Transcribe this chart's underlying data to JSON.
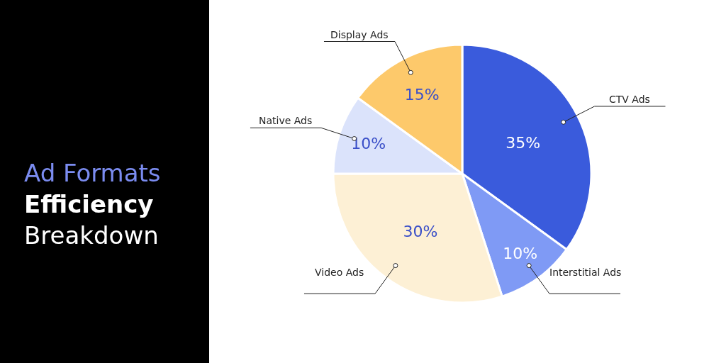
{
  "chart_data": {
    "type": "pie",
    "title": "Ad Formats\nEfficiency\nBreakdown",
    "categories": [
      "CTV Ads",
      "Interstitial Ads",
      "Video Ads",
      "Native Ads",
      "Display Ads"
    ],
    "values": [
      35,
      10,
      30,
      10,
      15
    ],
    "value_labels": [
      "35%",
      "10%",
      "30%",
      "10%",
      "15%"
    ],
    "colors": [
      "#3a5bdc",
      "#7f9af5",
      "#fdf0d5",
      "#dbe3fb",
      "#fdc96b"
    ],
    "legend": false
  }
}
